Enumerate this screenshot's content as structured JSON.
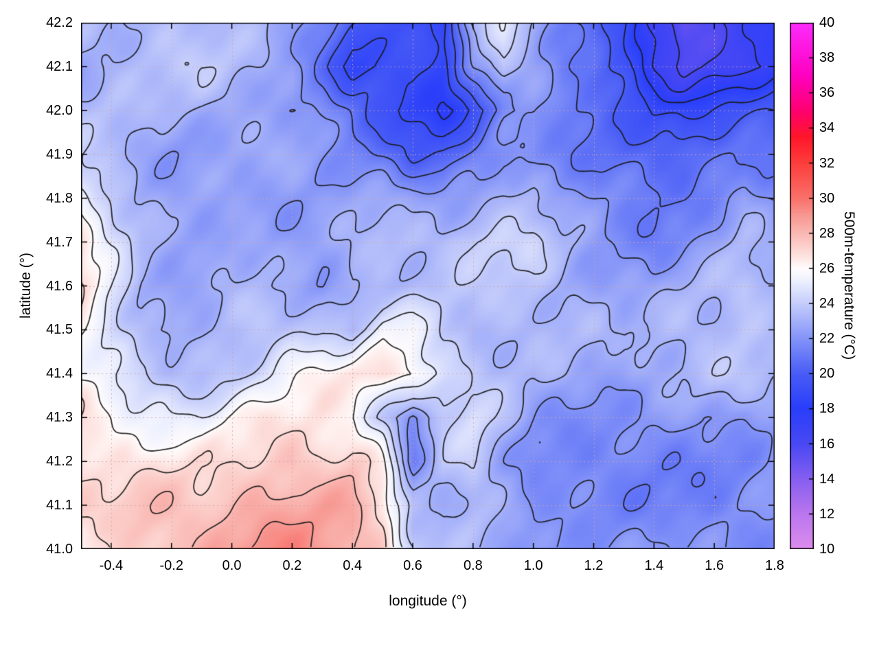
{
  "figure": {
    "background": "#ffffff"
  },
  "chart_data": {
    "type": "heatmap",
    "title": "",
    "xlabel": "longitude (°)",
    "ylabel": "latitude (°)",
    "colorbar_label": "500m-temperature (°C)",
    "x_range": [
      -0.5,
      1.8
    ],
    "y_range": [
      41.0,
      42.2
    ],
    "color_range": [
      10,
      40
    ],
    "grid_on": true,
    "legend_position": "colorbar-right",
    "x_tick_values": [
      -0.4,
      -0.2,
      0.0,
      0.2,
      0.4,
      0.6,
      0.8,
      1.0,
      1.2,
      1.4,
      1.6,
      1.8
    ],
    "x_tick_labels": [
      "-0.4",
      "-0.2",
      "0.0",
      "0.2",
      "0.4",
      "0.6",
      "0.8",
      "1.0",
      "1.2",
      "1.4",
      "1.6",
      "1.8"
    ],
    "y_tick_values": [
      41.0,
      41.1,
      41.2,
      41.3,
      41.4,
      41.5,
      41.6,
      41.7,
      41.8,
      41.9,
      42.0,
      42.1,
      42.2
    ],
    "y_tick_labels": [
      "41.0",
      "41.1",
      "41.2",
      "41.3",
      "41.4",
      "41.5",
      "41.6",
      "41.7",
      "41.8",
      "41.9",
      "42.0",
      "42.1",
      "42.2"
    ],
    "cb_tick_values": [
      10,
      12,
      14,
      16,
      18,
      20,
      22,
      24,
      26,
      28,
      30,
      32,
      34,
      36,
      38,
      40
    ],
    "cb_tick_labels": [
      "10",
      "12",
      "14",
      "16",
      "18",
      "20",
      "22",
      "24",
      "26",
      "28",
      "30",
      "32",
      "34",
      "36",
      "38",
      "40"
    ],
    "contour_levels": [
      16,
      17,
      18,
      19,
      20,
      21,
      22,
      23,
      24,
      25,
      26,
      27,
      28,
      29
    ],
    "palette_stops": [
      [
        10,
        221,
        140,
        237
      ],
      [
        12,
        186,
        118,
        238
      ],
      [
        14,
        134,
        94,
        240
      ],
      [
        16,
        72,
        72,
        243
      ],
      [
        18,
        42,
        62,
        250
      ],
      [
        20,
        72,
        92,
        246
      ],
      [
        22,
        132,
        148,
        248
      ],
      [
        24,
        197,
        205,
        251
      ],
      [
        25.3,
        238,
        241,
        254
      ],
      [
        26,
        255,
        252,
        252
      ],
      [
        27,
        252,
        216,
        212
      ],
      [
        28,
        250,
        184,
        179
      ],
      [
        29,
        248,
        152,
        146
      ],
      [
        30,
        250,
        112,
        106
      ],
      [
        32,
        252,
        62,
        60
      ],
      [
        33.5,
        255,
        22,
        42
      ],
      [
        35,
        255,
        0,
        112
      ],
      [
        37,
        255,
        0,
        192
      ],
      [
        40,
        252,
        44,
        252
      ]
    ],
    "grid": {
      "lon0": -0.5,
      "dlon": 0.1,
      "lat0": 42.2,
      "dlat": -0.1,
      "ncols": 24,
      "nrows": 13
    },
    "temperature_grid": [
      [
        23.0,
        23.0,
        23.2,
        23.5,
        23.5,
        23.3,
        23.0,
        22.5,
        21.5,
        20.5,
        20.0,
        19.0,
        18.5,
        23.0,
        24.5,
        23.0,
        21.5,
        20.5,
        19.5,
        16.5,
        15.0,
        16.0,
        17.0,
        17.5
      ],
      [
        23.0,
        23.2,
        23.3,
        23.5,
        23.5,
        23.2,
        23.0,
        22.5,
        21.0,
        18.5,
        19.0,
        19.5,
        18.5,
        22.0,
        24.0,
        22.5,
        21.0,
        20.5,
        19.0,
        17.0,
        16.0,
        16.5,
        17.0,
        17.5
      ],
      [
        23.5,
        23.5,
        23.2,
        23.0,
        23.0,
        22.8,
        22.5,
        22.0,
        21.5,
        20.5,
        19.5,
        18.8,
        18.2,
        19.5,
        21.5,
        22.0,
        21.0,
        20.5,
        20.0,
        19.0,
        18.5,
        19.0,
        19.5,
        20.0
      ],
      [
        24.0,
        23.5,
        23.0,
        22.5,
        22.5,
        22.5,
        22.5,
        22.5,
        22.0,
        21.5,
        21.0,
        19.8,
        20.0,
        21.0,
        22.0,
        22.0,
        21.5,
        21.0,
        20.5,
        20.0,
        20.0,
        20.5,
        21.0,
        21.0
      ],
      [
        25.5,
        24.0,
        23.0,
        22.5,
        22.5,
        22.5,
        22.5,
        22.5,
        22.5,
        22.5,
        22.5,
        22.0,
        22.0,
        22.5,
        23.5,
        23.5,
        22.5,
        22.0,
        21.5,
        21.0,
        21.0,
        21.5,
        22.5,
        21.5
      ],
      [
        26.5,
        24.5,
        23.0,
        22.5,
        22.5,
        23.0,
        23.0,
        22.5,
        22.5,
        23.0,
        23.5,
        23.5,
        23.5,
        24.0,
        24.0,
        24.0,
        23.0,
        22.5,
        22.0,
        21.5,
        22.0,
        22.5,
        23.0,
        22.5
      ],
      [
        27.0,
        25.0,
        23.0,
        22.5,
        22.5,
        23.0,
        23.0,
        22.5,
        22.2,
        23.5,
        23.5,
        23.5,
        23.5,
        23.5,
        23.5,
        23.5,
        23.0,
        22.5,
        22.5,
        22.5,
        23.0,
        23.5,
        24.0,
        23.5
      ],
      [
        26.5,
        25.0,
        23.5,
        22.5,
        22.5,
        23.0,
        23.5,
        24.0,
        24.0,
        23.2,
        25.5,
        25.5,
        24.0,
        23.5,
        23.5,
        23.5,
        23.0,
        23.0,
        22.5,
        23.0,
        23.5,
        23.5,
        24.0,
        23.5
      ],
      [
        26.0,
        25.0,
        24.0,
        23.5,
        23.5,
        24.0,
        24.5,
        25.5,
        26.0,
        26.3,
        26.5,
        26.5,
        25.0,
        24.0,
        23.5,
        23.0,
        23.0,
        22.5,
        22.5,
        23.0,
        23.0,
        23.5,
        23.5,
        23.0
      ],
      [
        26.5,
        26.0,
        25.5,
        25.5,
        25.5,
        26.0,
        26.5,
        26.5,
        26.5,
        26.0,
        24.0,
        21.5,
        23.5,
        24.5,
        23.5,
        22.5,
        22.0,
        22.0,
        22.0,
        22.0,
        22.0,
        22.0,
        22.0,
        22.5
      ],
      [
        27.0,
        26.5,
        26.5,
        26.5,
        26.5,
        27.0,
        27.5,
        28.0,
        27.5,
        27.5,
        26.0,
        21.0,
        23.5,
        24.0,
        22.5,
        21.5,
        21.5,
        21.5,
        21.5,
        21.5,
        21.5,
        21.5,
        21.5,
        22.0
      ],
      [
        27.0,
        27.0,
        27.5,
        27.5,
        27.5,
        28.0,
        28.5,
        28.5,
        28.5,
        28.5,
        27.0,
        23.5,
        23.0,
        23.5,
        22.5,
        21.5,
        21.5,
        21.5,
        21.5,
        21.5,
        21.5,
        21.5,
        21.8,
        22.0
      ],
      [
        26.5,
        27.0,
        27.5,
        28.0,
        28.0,
        28.5,
        29.0,
        29.0,
        29.0,
        28.5,
        27.5,
        24.5,
        23.5,
        23.0,
        22.5,
        22.0,
        22.0,
        22.0,
        22.0,
        22.0,
        22.0,
        22.0,
        22.0,
        22.2
      ]
    ]
  }
}
